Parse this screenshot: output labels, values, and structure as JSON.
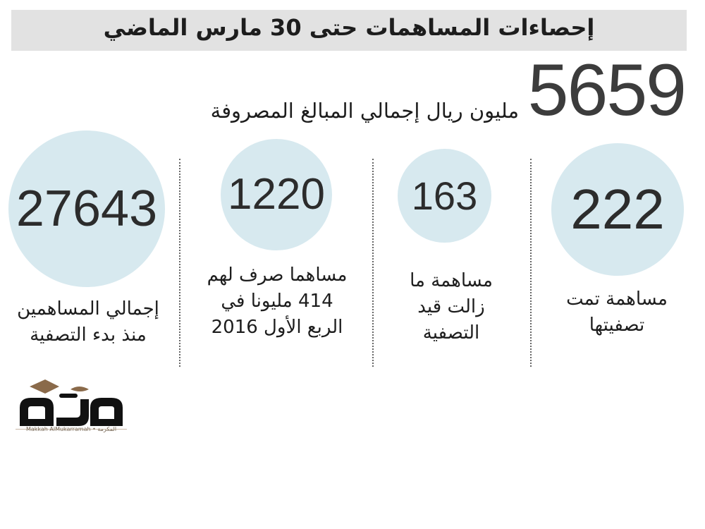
{
  "header": {
    "title": "إحصاءات المساهمات حتى 30 مارس الماضي"
  },
  "total": {
    "value": "5659",
    "caption": "مليون ريال إجمالي المبالغ المصروفة"
  },
  "stats": [
    {
      "value": "222",
      "caption_lines": [
        "مساهمة تمت",
        "تصفيتها"
      ]
    },
    {
      "value": "163",
      "caption_lines": [
        "مساهمة ما",
        "زالت قيد",
        "التصفية"
      ]
    },
    {
      "value": "1220",
      "caption_lines": [
        "مساهما صرف لهم",
        "414 مليونا في",
        "الربع الأول 2016"
      ]
    },
    {
      "value": "27643",
      "caption_lines": [
        "إجمالي المساهمين",
        "منذ بدء التصفية"
      ]
    }
  ],
  "logo": {
    "subtitle": "Makkah AlMukarramah • المكرمة"
  },
  "colors": {
    "header_bg": "#e2e2e2",
    "circle_fill": "#d7e9ef",
    "logo_brown": "#8a6a4a"
  }
}
